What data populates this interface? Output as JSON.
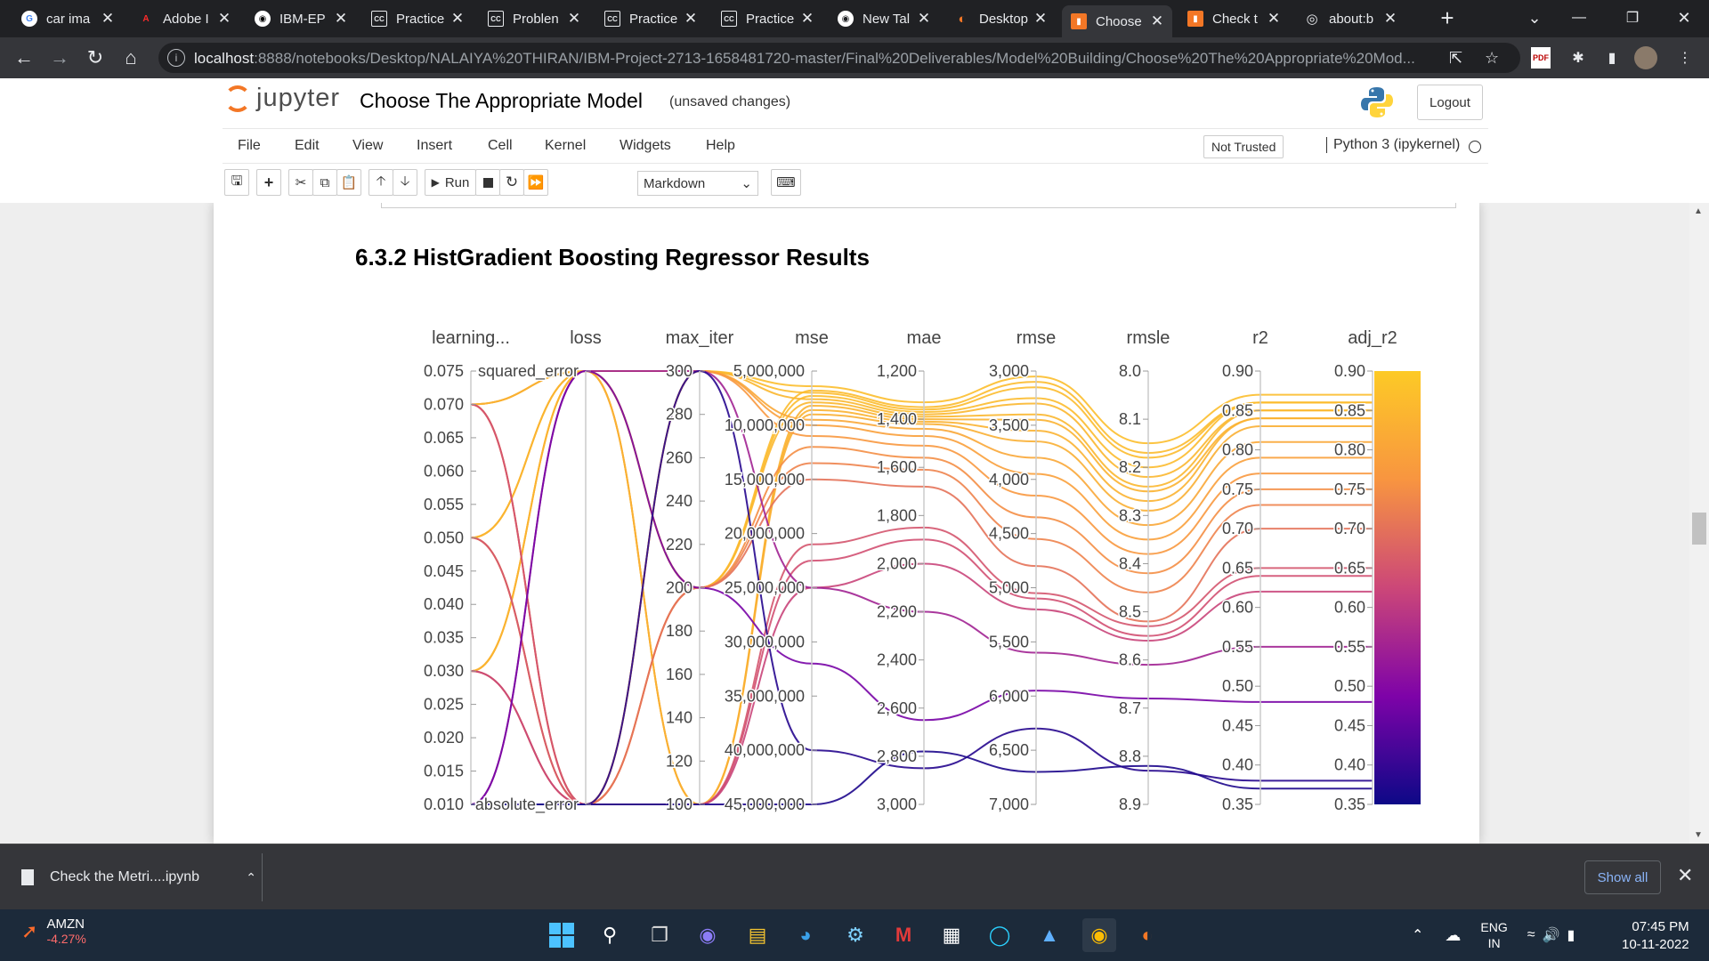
{
  "browser": {
    "tabs": [
      {
        "label": "car ima",
        "icon": "google-icon"
      },
      {
        "label": "Adobe I",
        "icon": "adobe-icon"
      },
      {
        "label": "IBM-EP",
        "icon": "github-icon"
      },
      {
        "label": "Practice",
        "icon": "cc-icon"
      },
      {
        "label": "Problen",
        "icon": "cc-icon"
      },
      {
        "label": "Practice",
        "icon": "cc-icon"
      },
      {
        "label": "Practice",
        "icon": "cc-icon"
      },
      {
        "label": "New Tal",
        "icon": "chrome-icon"
      },
      {
        "label": "Desktop",
        "icon": "jupyter-icon"
      },
      {
        "label": "Choose",
        "icon": "jupyter-book-icon"
      },
      {
        "label": "Check t",
        "icon": "jupyter-book-icon"
      },
      {
        "label": "about:b",
        "icon": "globe-icon"
      }
    ],
    "url_host": "localhost",
    "url_path": ":8888/notebooks/Desktop/NALAIYA%20THIRAN/IBM-Project-2713-1658481720-master/Final%20Deliverables/Model%20Building/Choose%20The%20Appropriate%20Mod..."
  },
  "jupyter": {
    "logo_text": "jupyter",
    "notebook_title": "Choose The Appropriate Model",
    "save_status": "(unsaved changes)",
    "logout_label": "Logout",
    "menu": [
      "File",
      "Edit",
      "View",
      "Insert",
      "Cell",
      "Kernel",
      "Widgets",
      "Help"
    ],
    "trusted_label": "Not Trusted",
    "kernel_label": "Python 3 (ipykernel)",
    "toolbar": {
      "run_label": "Run",
      "cell_type": "Markdown"
    }
  },
  "cell": {
    "heading": "6.3.2 HistGradient Boosting Regressor Results"
  },
  "chart_data": {
    "type": "parallel_coordinates",
    "color_by": "adj_r2",
    "colorscale": [
      "#0d0887",
      "#7e03a8",
      "#cc4778",
      "#f89540",
      "#fdca26"
    ],
    "color_range": [
      0.35,
      0.9
    ],
    "axes": [
      {
        "name": "learning...",
        "kind": "numeric",
        "range": [
          0.01,
          0.075
        ],
        "ticks": [
          "0.075",
          "0.070",
          "0.065",
          "0.060",
          "0.055",
          "0.050",
          "0.045",
          "0.040",
          "0.035",
          "0.030",
          "0.025",
          "0.020",
          "0.015",
          "0.010"
        ],
        "tick_values": [
          0.075,
          0.07,
          0.065,
          0.06,
          0.055,
          0.05,
          0.045,
          0.04,
          0.035,
          0.03,
          0.025,
          0.02,
          0.015,
          0.01
        ]
      },
      {
        "name": "loss",
        "kind": "categorical",
        "categories": [
          "squared_error",
          "absolute_error"
        ],
        "ticks": [
          "squared_error",
          "absolute_error"
        ],
        "tick_values": [
          1,
          0
        ],
        "range": [
          0,
          1
        ]
      },
      {
        "name": "max_iter",
        "kind": "numeric",
        "range": [
          100,
          300
        ],
        "ticks": [
          "300",
          "280",
          "260",
          "240",
          "220",
          "200",
          "180",
          "160",
          "140",
          "120",
          "100"
        ],
        "tick_values": [
          300,
          280,
          260,
          240,
          220,
          200,
          180,
          160,
          140,
          120,
          100
        ]
      },
      {
        "name": "mse",
        "kind": "numeric",
        "reversed": true,
        "range": [
          45000000,
          5000000
        ],
        "ticks": [
          "5,000,000",
          "10,000,000",
          "15,000,000",
          "20,000,000",
          "25,000,000",
          "30,000,000",
          "35,000,000",
          "40,000,000",
          "45,000,000"
        ],
        "tick_values": [
          5000000,
          10000000,
          15000000,
          20000000,
          25000000,
          30000000,
          35000000,
          40000000,
          45000000
        ]
      },
      {
        "name": "mae",
        "kind": "numeric",
        "reversed": true,
        "range": [
          3000,
          1200
        ],
        "ticks": [
          "1,200",
          "1,400",
          "1,600",
          "1,800",
          "2,000",
          "2,200",
          "2,400",
          "2,600",
          "2,800",
          "3,000"
        ],
        "tick_values": [
          1200,
          1400,
          1600,
          1800,
          2000,
          2200,
          2400,
          2600,
          2800,
          3000
        ]
      },
      {
        "name": "rmse",
        "kind": "numeric",
        "reversed": true,
        "range": [
          7000,
          3000
        ],
        "ticks": [
          "3,000",
          "3,500",
          "4,000",
          "4,500",
          "5,000",
          "5,500",
          "6,000",
          "6,500",
          "7,000"
        ],
        "tick_values": [
          3000,
          3500,
          4000,
          4500,
          5000,
          5500,
          6000,
          6500,
          7000
        ]
      },
      {
        "name": "rmsle",
        "kind": "numeric",
        "reversed": true,
        "range": [
          8.9,
          8.0
        ],
        "ticks": [
          "8.0",
          "8.1",
          "8.2",
          "8.3",
          "8.4",
          "8.5",
          "8.6",
          "8.7",
          "8.8",
          "8.9"
        ],
        "tick_values": [
          8.0,
          8.1,
          8.2,
          8.3,
          8.4,
          8.5,
          8.6,
          8.7,
          8.8,
          8.9
        ]
      },
      {
        "name": "r2",
        "kind": "numeric",
        "range": [
          0.35,
          0.9
        ],
        "ticks": [
          "0.90",
          "0.85",
          "0.80",
          "0.75",
          "0.70",
          "0.65",
          "0.60",
          "0.55",
          "0.50",
          "0.45",
          "0.40",
          "0.35"
        ],
        "tick_values": [
          0.9,
          0.85,
          0.8,
          0.75,
          0.7,
          0.65,
          0.6,
          0.55,
          0.5,
          0.45,
          0.4,
          0.35
        ]
      },
      {
        "name": "adj_r2",
        "kind": "numeric",
        "range": [
          0.35,
          0.9
        ],
        "ticks": [
          "0.90",
          "0.85",
          "0.80",
          "0.75",
          "0.70",
          "0.65",
          "0.60",
          "0.55",
          "0.50",
          "0.45",
          "0.40",
          "0.35"
        ],
        "tick_values": [
          0.9,
          0.85,
          0.8,
          0.75,
          0.7,
          0.65,
          0.6,
          0.55,
          0.5,
          0.45,
          0.4,
          0.35
        ]
      }
    ],
    "rows": [
      [
        0.05,
        1,
        300,
        6400000,
        1330,
        3050,
        8.15,
        0.87,
        0.87
      ],
      [
        0.03,
        1,
        200,
        6800000,
        1350,
        3100,
        8.17,
        0.86,
        0.86
      ],
      [
        0.07,
        1,
        300,
        7000000,
        1360,
        3150,
        8.18,
        0.86,
        0.86
      ],
      [
        0.05,
        1,
        200,
        7300000,
        1370,
        3250,
        8.2,
        0.86,
        0.86
      ],
      [
        0.03,
        1,
        300,
        7600000,
        1380,
        3300,
        8.22,
        0.85,
        0.85
      ],
      [
        0.07,
        1,
        200,
        7900000,
        1390,
        3400,
        8.24,
        0.85,
        0.85
      ],
      [
        0.05,
        1,
        100,
        8200000,
        1400,
        3450,
        8.25,
        0.84,
        0.84
      ],
      [
        0.03,
        1,
        100,
        8600000,
        1410,
        3550,
        8.27,
        0.84,
        0.84
      ],
      [
        0.07,
        1,
        100,
        9000000,
        1420,
        3650,
        8.29,
        0.83,
        0.83
      ],
      [
        0.05,
        0,
        300,
        9500000,
        1440,
        3800,
        8.32,
        0.81,
        0.81
      ],
      [
        0.07,
        0,
        300,
        10000000,
        1470,
        3950,
        8.35,
        0.79,
        0.79
      ],
      [
        0.03,
        0,
        300,
        11000000,
        1510,
        4150,
        8.38,
        0.77,
        0.77
      ],
      [
        0.05,
        0,
        200,
        12000000,
        1560,
        4350,
        8.42,
        0.75,
        0.75
      ],
      [
        0.07,
        0,
        200,
        13500000,
        1610,
        4550,
        8.46,
        0.73,
        0.73
      ],
      [
        0.03,
        0,
        200,
        15000000,
        1680,
        4800,
        8.52,
        0.7,
        0.7
      ],
      [
        0.05,
        0,
        100,
        21000000,
        1850,
        5050,
        8.53,
        0.65,
        0.65
      ],
      [
        0.07,
        0,
        100,
        22500000,
        1900,
        5100,
        8.55,
        0.64,
        0.64
      ],
      [
        0.03,
        0,
        100,
        25000000,
        2000,
        5200,
        8.56,
        0.62,
        0.62
      ],
      [
        0.01,
        1,
        300,
        25000000,
        2200,
        5600,
        8.61,
        0.55,
        0.55
      ],
      [
        0.01,
        1,
        200,
        32000000,
        2650,
        5950,
        8.68,
        0.48,
        0.48
      ],
      [
        0.01,
        0,
        300,
        40000000,
        2850,
        6300,
        8.83,
        0.38,
        0.38
      ],
      [
        0.01,
        0,
        100,
        45000000,
        2780,
        6700,
        8.82,
        0.37,
        0.37
      ]
    ]
  },
  "download": {
    "filename": "Check the Metri....ipynb",
    "show_all": "Show all"
  },
  "taskbar": {
    "stock_symbol": "AMZN",
    "stock_change": "-4.27%",
    "lang_top": "ENG",
    "lang_bottom": "IN",
    "time": "07:45 PM",
    "date": "10-11-2022"
  }
}
